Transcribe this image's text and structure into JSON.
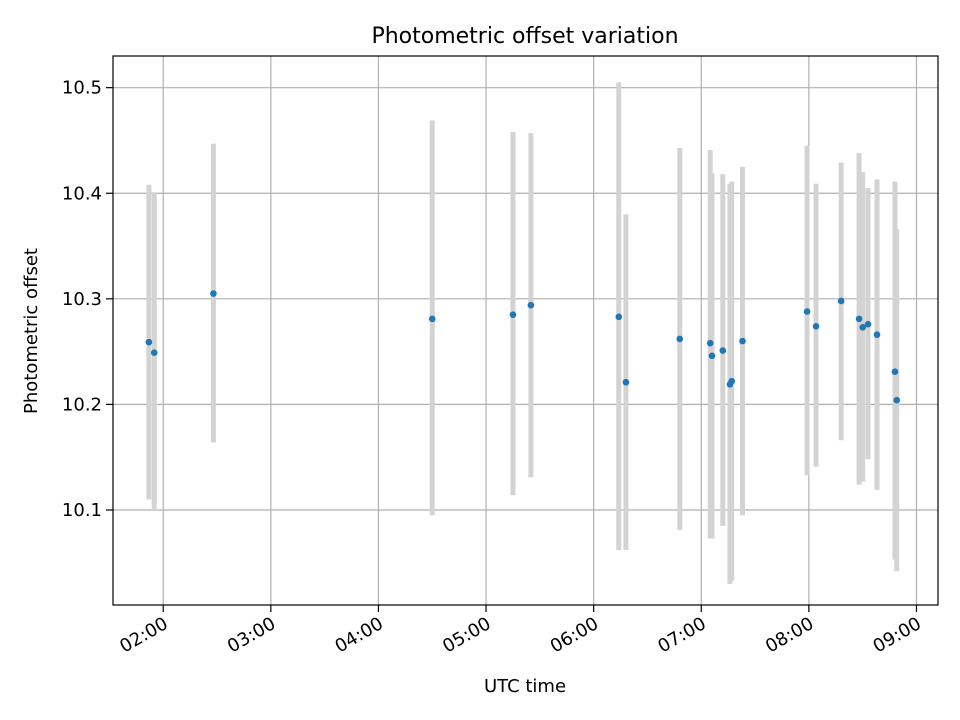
{
  "chart_data": {
    "type": "scatter",
    "title": "Photometric offset variation",
    "xlabel": "UTC time",
    "ylabel": "Photometric offset",
    "grid": true,
    "x_tick_labels": [
      "02:00",
      "03:00",
      "04:00",
      "05:00",
      "06:00",
      "07:00",
      "08:00",
      "09:00"
    ],
    "x_tick_values": [
      "02:00",
      "03:00",
      "04:00",
      "05:00",
      "06:00",
      "07:00",
      "08:00",
      "09:00"
    ],
    "y_ticks": [
      10.1,
      10.2,
      10.3,
      10.4,
      10.5
    ],
    "y_tick_labels": [
      "10.1",
      "10.2",
      "10.3",
      "10.4",
      "10.5"
    ],
    "xlim": [
      "01:32",
      "09:12"
    ],
    "ylim": [
      10.01,
      10.53
    ],
    "marker_color": "#1f77b4",
    "errorbar_color": "#d3d3d3",
    "points": [
      {
        "x": "01:52",
        "y": 10.259,
        "ylow": 10.11,
        "yhigh": 10.408
      },
      {
        "x": "01:55",
        "y": 10.249,
        "ylow": 10.101,
        "yhigh": 10.4
      },
      {
        "x": "02:28",
        "y": 10.305,
        "ylow": 10.164,
        "yhigh": 10.447
      },
      {
        "x": "04:30",
        "y": 10.281,
        "ylow": 10.095,
        "yhigh": 10.469
      },
      {
        "x": "05:15",
        "y": 10.285,
        "ylow": 10.114,
        "yhigh": 10.458
      },
      {
        "x": "05:25",
        "y": 10.294,
        "ylow": 10.131,
        "yhigh": 10.457
      },
      {
        "x": "06:14",
        "y": 10.283,
        "ylow": 10.062,
        "yhigh": 10.505
      },
      {
        "x": "06:18",
        "y": 10.221,
        "ylow": 10.062,
        "yhigh": 10.38
      },
      {
        "x": "06:48",
        "y": 10.262,
        "ylow": 10.081,
        "yhigh": 10.443
      },
      {
        "x": "07:05",
        "y": 10.258,
        "ylow": 10.073,
        "yhigh": 10.441
      },
      {
        "x": "07:06",
        "y": 10.246,
        "ylow": 10.073,
        "yhigh": 10.419
      },
      {
        "x": "07:12",
        "y": 10.251,
        "ylow": 10.085,
        "yhigh": 10.418
      },
      {
        "x": "07:16",
        "y": 10.219,
        "ylow": 10.03,
        "yhigh": 10.409
      },
      {
        "x": "07:17",
        "y": 10.222,
        "ylow": 10.033,
        "yhigh": 10.411
      },
      {
        "x": "07:23",
        "y": 10.26,
        "ylow": 10.095,
        "yhigh": 10.425
      },
      {
        "x": "07:59",
        "y": 10.288,
        "ylow": 10.133,
        "yhigh": 10.445
      },
      {
        "x": "08:04",
        "y": 10.274,
        "ylow": 10.141,
        "yhigh": 10.409
      },
      {
        "x": "08:18",
        "y": 10.298,
        "ylow": 10.166,
        "yhigh": 10.429
      },
      {
        "x": "08:28",
        "y": 10.281,
        "ylow": 10.124,
        "yhigh": 10.438
      },
      {
        "x": "08:30",
        "y": 10.273,
        "ylow": 10.127,
        "yhigh": 10.42
      },
      {
        "x": "08:33",
        "y": 10.276,
        "ylow": 10.148,
        "yhigh": 10.405
      },
      {
        "x": "08:38",
        "y": 10.266,
        "ylow": 10.119,
        "yhigh": 10.413
      },
      {
        "x": "08:48",
        "y": 10.231,
        "ylow": 10.053,
        "yhigh": 10.411
      },
      {
        "x": "08:49",
        "y": 10.204,
        "ylow": 10.042,
        "yhigh": 10.366
      }
    ]
  }
}
